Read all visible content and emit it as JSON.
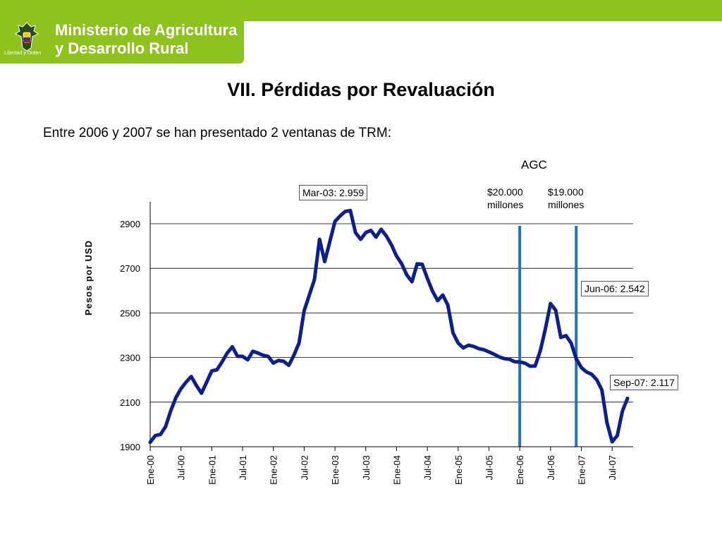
{
  "header": {
    "ministry_line1": "Ministerio de Agricultura",
    "ministry_line2": "y Desarrollo Rural",
    "motto": "Libertad y Orden",
    "accent_color": "#8dc21f"
  },
  "slide": {
    "title": "VII. Pérdidas por Revaluación",
    "subtitle": "Entre 2006 y 2007 se han presentado 2 ventanas de TRM:",
    "agc_label": "AGC",
    "window1_line1": "$20.000",
    "window1_line2": "millones",
    "window2_line1": "$19.000",
    "window2_line2": "millones",
    "callout_max": "Mar-03: 2.959",
    "callout_jun06": "Jun-06: 2.542",
    "callout_sep07": "Sep-07: 2.117"
  },
  "chart_data": {
    "type": "line",
    "title": "",
    "xlabel": "",
    "ylabel": "Pesos por USD",
    "ylim": [
      1900,
      3000
    ],
    "yticks": [
      1900,
      2100,
      2300,
      2500,
      2700,
      2900
    ],
    "ytick_labels": [
      "1900",
      "2100",
      "2300",
      "2500",
      "2700",
      "2900"
    ],
    "xlim": [
      0,
      94
    ],
    "xticks": [
      0,
      6,
      12,
      18,
      24,
      30,
      36,
      42,
      48,
      54,
      60,
      66,
      72,
      78,
      84,
      90
    ],
    "xtick_labels": [
      "Ene-00",
      "Jul-00",
      "Ene-01",
      "Jul-01",
      "Ene-02",
      "Jul-02",
      "Ene-03",
      "Jul-03",
      "Ene-04",
      "Jul-04",
      "Ene-05",
      "Jul-05",
      "Ene-06",
      "Jul-06",
      "Ene-07",
      "Jul-07"
    ],
    "grid": true,
    "series_color": "#0d1f8c",
    "marker_color": "#2173c1",
    "vertical_markers": [
      72,
      83
    ],
    "series": [
      {
        "x": [
          0,
          1,
          2,
          3,
          4,
          5,
          6,
          7,
          8,
          9,
          10,
          11,
          12,
          13,
          14,
          15,
          16,
          17,
          18,
          19,
          20,
          21,
          22,
          23,
          24,
          25,
          26,
          27,
          28,
          29,
          30,
          31,
          32,
          33,
          34,
          35,
          36,
          37,
          38,
          39,
          40,
          41,
          42,
          43,
          44,
          45,
          46,
          47,
          48,
          49,
          50,
          51,
          52,
          53,
          54,
          55,
          56,
          57,
          58,
          59,
          60,
          61,
          62,
          63,
          64,
          65,
          66,
          67,
          68,
          69,
          70,
          71,
          72,
          73,
          74,
          75,
          76,
          77,
          78,
          79,
          80,
          81,
          82,
          83,
          84,
          85,
          86,
          87,
          88,
          89,
          90,
          91,
          92,
          93
        ],
        "values": [
          1920,
          1950,
          1955,
          1990,
          2060,
          2120,
          2160,
          2190,
          2215,
          2175,
          2140,
          2190,
          2240,
          2245,
          2280,
          2320,
          2348,
          2306,
          2305,
          2290,
          2328,
          2320,
          2310,
          2305,
          2275,
          2287,
          2283,
          2265,
          2310,
          2365,
          2510,
          2580,
          2650,
          2830,
          2730,
          2820,
          2910,
          2935,
          2955,
          2959,
          2860,
          2830,
          2860,
          2870,
          2840,
          2875,
          2845,
          2805,
          2755,
          2720,
          2670,
          2640,
          2720,
          2718,
          2655,
          2598,
          2555,
          2580,
          2535,
          2410,
          2365,
          2343,
          2355,
          2350,
          2340,
          2335,
          2325,
          2315,
          2303,
          2295,
          2292,
          2281,
          2280,
          2275,
          2261,
          2262,
          2330,
          2430,
          2542,
          2512,
          2390,
          2398,
          2365,
          2295,
          2255,
          2235,
          2225,
          2200,
          2155,
          2007,
          1922,
          1950,
          2060,
          2117
        ]
      }
    ]
  }
}
